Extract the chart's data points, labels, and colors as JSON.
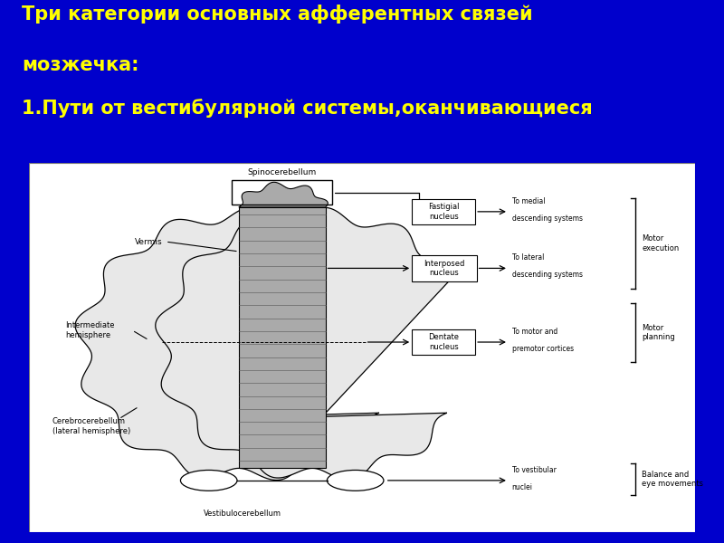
{
  "bg_color": "#0000CC",
  "title_line1": "Три категории основных афферентных связей",
  "title_line2": "мозжечка:",
  "subtitle": "1.Пути от вестибулярной системы,оканчивающиеся",
  "title_color": "#FFFF00",
  "subtitle_color": "#FFFF00",
  "title_fontsize": 15,
  "subtitle_fontsize": 15,
  "labels": {
    "spinocerebellum": "Spinocerebellum",
    "vermis": "Vermis",
    "intermediate": "Intermediate\nhemisphere",
    "cerebrocerebellum": "Cerebrocerebellum\n(lateral hemisphere)",
    "vestibulocerebellum": "Vestibulocerebellum",
    "fastigial": "Fastigial\nnucleus",
    "interposed": "Interposed\nnucleus",
    "dentate": "Dentate\nnucleus",
    "to_medial": "To medial\ndescending systems",
    "to_lateral": "To lateral\ndescending systems",
    "to_motor": "To motor and\npremotor cortices",
    "to_vestibular": "To vestibular\nnuclei",
    "motor_execution": "Motor\nexecution",
    "motor_planning": "Motor\nplanning",
    "balance": "Balance and\neye movements"
  }
}
